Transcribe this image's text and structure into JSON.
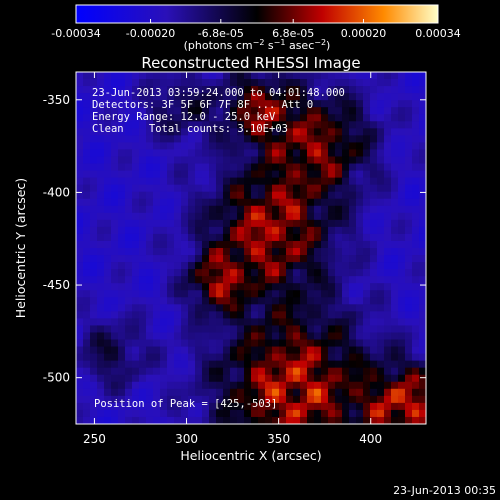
{
  "colorbar": {
    "tick_labels": [
      "-0.00034",
      "-0.00020",
      "-6.8e-05",
      "6.8e-05",
      "0.00020",
      "0.00034"
    ],
    "tick_values": [
      -0.00034,
      -0.0002,
      -6.8e-05,
      6.8e-05,
      0.0002,
      0.00034
    ],
    "range": [
      -0.00034,
      0.00034
    ],
    "units_html": "(photons cm<tspan baseline-shift=\"super\" font-size=\"8\">−2</tspan> s<tspan baseline-shift=\"super\" font-size=\"8\">−1</tspan> asec<tspan baseline-shift=\"super\" font-size=\"8\">−2</tspan>)"
  },
  "title": "Reconstructed RHESSI Image",
  "info_lines": [
    "23-Jun-2013 03:59:24.000 to 04:01:48.000",
    "Detectors: 3F 5F 6F 7F 8F ... Att 0",
    "Energy Range: 12.0 - 25.0 keV",
    "Clean    Total counts: 3.10E+03"
  ],
  "peak_label": "Position of Peak = [425,-503]",
  "xaxis": {
    "label": "Heliocentric X (arcsec)",
    "ticks": [
      250,
      300,
      350,
      400
    ],
    "tick_labels": [
      "250",
      "300",
      "350",
      "400"
    ],
    "range": [
      240,
      430
    ]
  },
  "yaxis": {
    "label": "Heliocentric Y (arcsec)",
    "ticks": [
      -350,
      -400,
      -450,
      -500
    ],
    "tick_labels": [
      "-350",
      "-400",
      "-450",
      "-500"
    ],
    "range": [
      -525,
      -335
    ]
  },
  "timestamp": "23-Jun-2013 00:35",
  "colors": {
    "background": "#000000",
    "text": "#ffffff"
  }
}
